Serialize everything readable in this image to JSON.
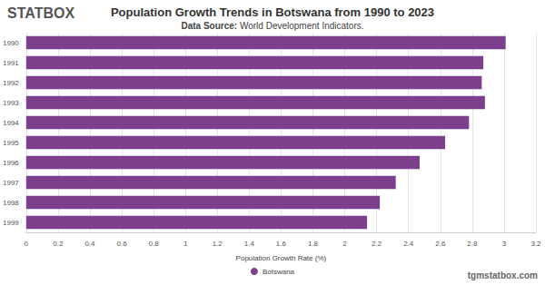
{
  "chart_data": {
    "type": "bar",
    "orientation": "horizontal",
    "title": "Population Growth Trends in Botswana from 1990 to 2023",
    "subtitle": "Data Source: World Development Indicators.",
    "x_label": "Population Growth Rate (%)",
    "annotations": [
      "STATBOX",
      "tgmstatbox.com"
    ],
    "categories": [
      "1990",
      "1991",
      "1992",
      "1993",
      "1994",
      "1995",
      "1996",
      "1997",
      "1998",
      "1999"
    ],
    "series": [
      {
        "name": "Botswana",
        "color": "#7b3f8c",
        "values": [
          3.01,
          2.87,
          2.86,
          2.88,
          2.78,
          2.63,
          2.47,
          2.32,
          2.22,
          2.14
        ]
      }
    ],
    "xlim": [
      0,
      3.2
    ],
    "xticks": [
      0,
      0.2,
      0.4,
      0.6,
      0.8,
      1,
      1.2,
      1.4,
      1.6,
      1.8,
      2,
      2.2,
      2.4,
      2.6,
      2.8,
      3,
      3.2
    ],
    "grid": true,
    "legend": "bottom"
  }
}
